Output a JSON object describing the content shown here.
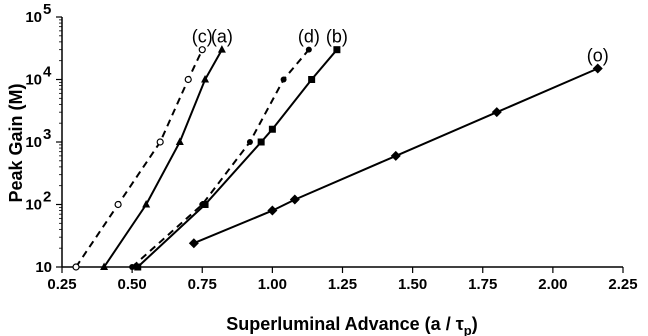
{
  "chart_data": {
    "type": "line",
    "title": "",
    "xlabel": "Superluminal Advance (a / τ",
    "xlabel_sub": "p",
    "xlabel_close": ")",
    "ylabel": "Peak Gain (M)",
    "xlim": [
      0.25,
      2.25
    ],
    "ylim_log10": [
      1,
      5
    ],
    "y_scale": "log",
    "grid": false,
    "x_ticks": [
      {
        "value": 0.25,
        "label": "0.25"
      },
      {
        "value": 0.5,
        "label": "0.50"
      },
      {
        "value": 0.75,
        "label": "0.75"
      },
      {
        "value": 1.0,
        "label": "1.00"
      },
      {
        "value": 1.25,
        "label": "1.25"
      },
      {
        "value": 1.5,
        "label": "1.50"
      },
      {
        "value": 1.75,
        "label": "1.75"
      },
      {
        "value": 2.0,
        "label": "2.00"
      },
      {
        "value": 2.25,
        "label": "2.25"
      }
    ],
    "y_ticks": [
      {
        "value": 10,
        "base": "10",
        "exp": ""
      },
      {
        "value": 100,
        "base": "10",
        "exp": "2"
      },
      {
        "value": 1000,
        "base": "10",
        "exp": "3"
      },
      {
        "value": 10000,
        "base": "10",
        "exp": "4"
      },
      {
        "value": 100000,
        "base": "10",
        "exp": "5"
      }
    ],
    "series": [
      {
        "id": "c",
        "label": "(c)",
        "line": "dashed",
        "marker": "open-circle",
        "color": "#000000",
        "x": [
          0.3,
          0.45,
          0.6,
          0.7,
          0.75
        ],
        "y": [
          10,
          100,
          1000,
          10000,
          30000
        ]
      },
      {
        "id": "a",
        "label": "(a)",
        "line": "solid",
        "marker": "triangle",
        "color": "#000000",
        "x": [
          0.4,
          0.55,
          0.67,
          0.76,
          0.82
        ],
        "y": [
          10,
          100,
          1000,
          10000,
          30000
        ]
      },
      {
        "id": "d",
        "label": "(d)",
        "line": "dashed",
        "marker": "filled-circle",
        "color": "#000000",
        "x": [
          0.5,
          0.75,
          0.92,
          1.04,
          1.13
        ],
        "y": [
          10,
          100,
          1000,
          10000,
          30000
        ]
      },
      {
        "id": "b",
        "label": "(b)",
        "line": "solid",
        "marker": "square",
        "color": "#000000",
        "x": [
          0.52,
          0.76,
          0.96,
          1.0,
          1.14,
          1.23
        ],
        "y": [
          10,
          100,
          1000,
          1600,
          10000,
          30000
        ]
      },
      {
        "id": "o",
        "label": "(o)",
        "line": "solid",
        "marker": "diamond",
        "color": "#000000",
        "x": [
          0.72,
          1.0,
          1.08,
          1.44,
          1.8,
          2.16
        ],
        "y": [
          24,
          80,
          120,
          600,
          3000,
          15000
        ]
      }
    ]
  }
}
